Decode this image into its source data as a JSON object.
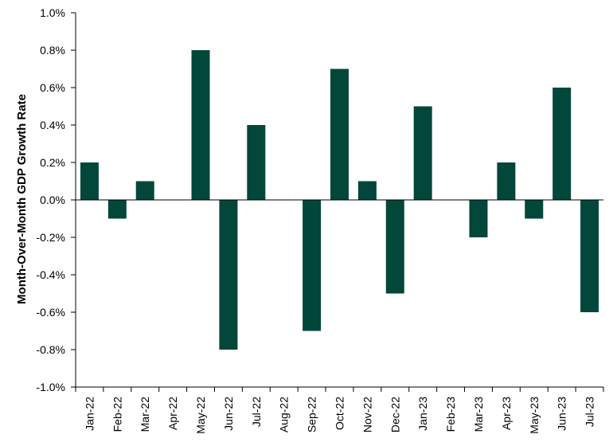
{
  "chart_data": {
    "type": "bar",
    "title": "",
    "xlabel": "",
    "ylabel": "Month-Over-Month GDP Growth Rate",
    "ylim": [
      -1.0,
      1.0
    ],
    "yticks": [
      "1.0%",
      "0.8%",
      "0.6%",
      "0.4%",
      "0.2%",
      "0.0%",
      "-0.2%",
      "-0.4%",
      "-0.6%",
      "-0.8%",
      "-1.0%"
    ],
    "ytick_values": [
      1.0,
      0.8,
      0.6,
      0.4,
      0.2,
      0.0,
      -0.2,
      -0.4,
      -0.6,
      -0.8,
      -1.0
    ],
    "categories": [
      "Jan-22",
      "Feb-22",
      "Mar-22",
      "Apr-22",
      "May-22",
      "Jun-22",
      "Jul-22",
      "Aug-22",
      "Sep-22",
      "Oct-22",
      "Nov-22",
      "Dec-22",
      "Jan-23",
      "Feb-23",
      "Mar-23",
      "Apr-23",
      "May-23",
      "Jun-23",
      "Jul-23"
    ],
    "values": [
      0.2,
      -0.1,
      0.1,
      0.0,
      0.8,
      -0.8,
      0.4,
      0.0,
      -0.7,
      0.7,
      0.1,
      -0.5,
      0.5,
      0.0,
      -0.2,
      0.2,
      -0.1,
      0.6,
      -0.6
    ],
    "grid": false,
    "legend": "none",
    "bar_color": "#03473A"
  }
}
